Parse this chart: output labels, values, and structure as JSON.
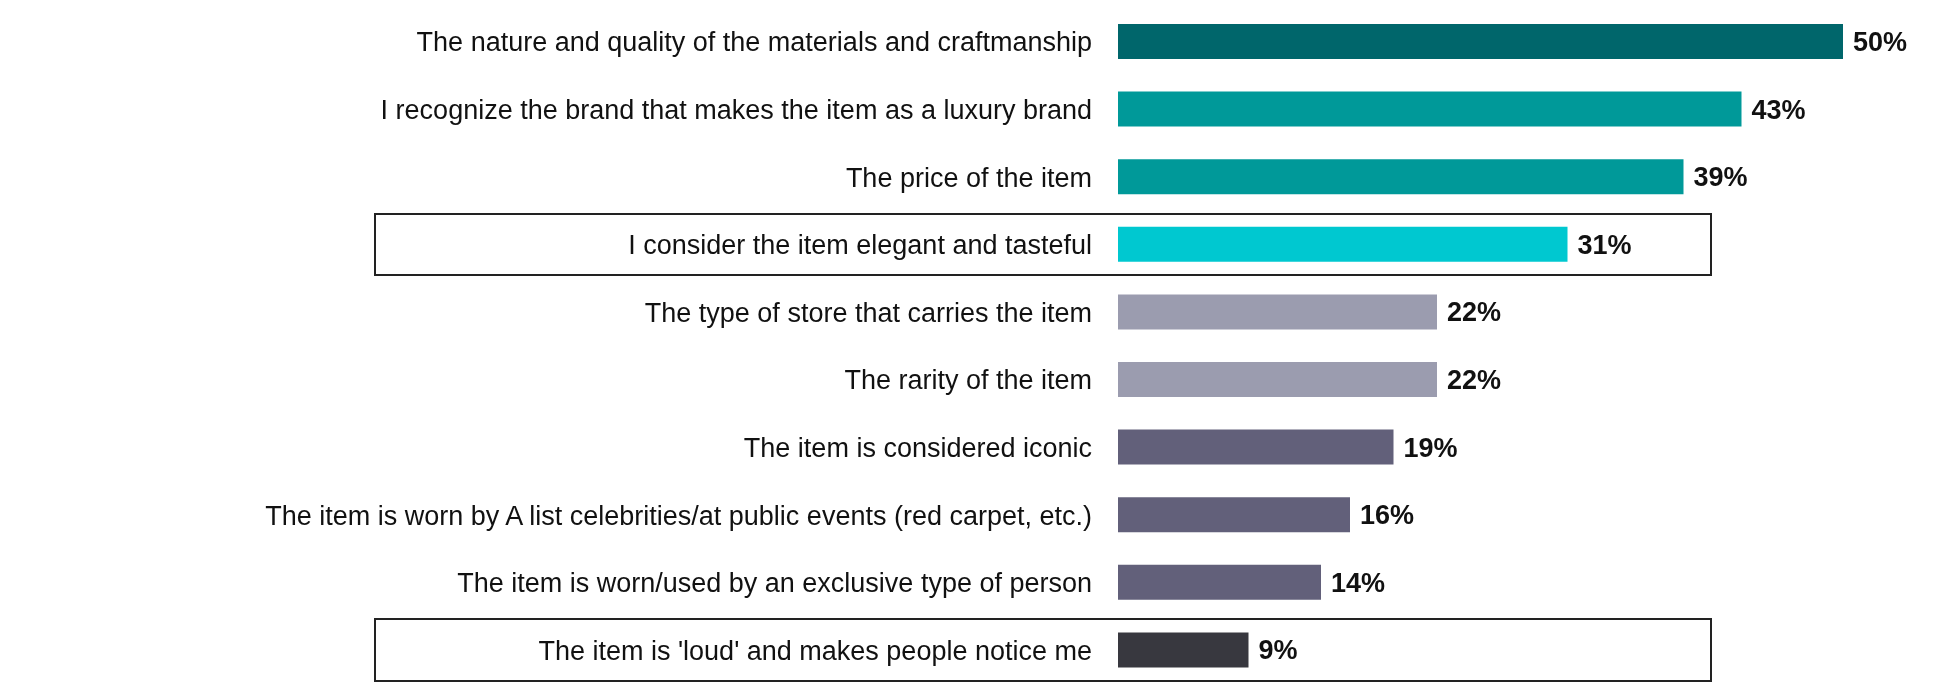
{
  "chart_data": {
    "type": "bar",
    "orientation": "horizontal",
    "categories": [
      "The nature and quality of the materials and craftmanship",
      "I recognize the brand that makes the item as a luxury brand",
      "The price of the item",
      "I consider the item elegant and tasteful",
      "The type of store that carries the item",
      "The rarity of the item",
      "The item is considered iconic",
      "The item is worn by A list celebrities/at public events (red carpet, etc.)",
      "The item is worn/used by an exclusive type of person",
      "The item is 'loud' and makes people notice me"
    ],
    "values": [
      50,
      43,
      39,
      31,
      22,
      22,
      19,
      16,
      14,
      9
    ],
    "value_labels": [
      "50%",
      "43%",
      "39%",
      "31%",
      "22%",
      "22%",
      "19%",
      "16%",
      "14%",
      "9%"
    ],
    "colors": [
      "#00666b",
      "#009999",
      "#009999",
      "#00c8d0",
      "#9b9caf",
      "#9b9caf",
      "#62607a",
      "#62607a",
      "#62607a",
      "#38383f"
    ]
  }
}
